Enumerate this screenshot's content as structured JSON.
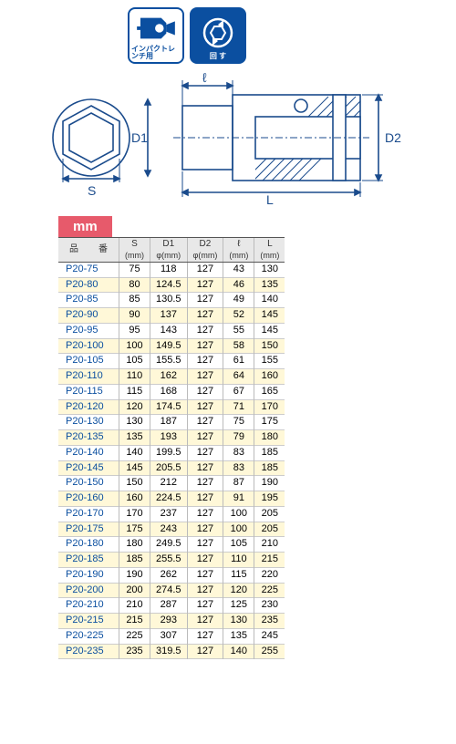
{
  "icons": {
    "impact_label": "インパクトレンチ用",
    "turn_label": "回 す"
  },
  "diagram": {
    "labels": {
      "S": "S",
      "D1": "D1",
      "D2": "D2",
      "L": "L",
      "l": "ℓ"
    },
    "colors": {
      "line": "#1a4b8c",
      "hatch": "#1a4b8c",
      "bg": "#ffffff"
    }
  },
  "unit_tab": "mm",
  "table": {
    "headers": [
      {
        "main": "品　番",
        "sub": ""
      },
      {
        "main": "S",
        "sub": "(mm)"
      },
      {
        "main": "D1",
        "sub": "φ(mm)"
      },
      {
        "main": "D2",
        "sub": "φ(mm)"
      },
      {
        "main": "ℓ",
        "sub": "(mm)"
      },
      {
        "main": "L",
        "sub": "(mm)"
      }
    ],
    "rows": [
      [
        "P20-75",
        "75",
        "118",
        "127",
        "43",
        "130"
      ],
      [
        "P20-80",
        "80",
        "124.5",
        "127",
        "46",
        "135"
      ],
      [
        "P20-85",
        "85",
        "130.5",
        "127",
        "49",
        "140"
      ],
      [
        "P20-90",
        "90",
        "137",
        "127",
        "52",
        "145"
      ],
      [
        "P20-95",
        "95",
        "143",
        "127",
        "55",
        "145"
      ],
      [
        "P20-100",
        "100",
        "149.5",
        "127",
        "58",
        "150"
      ],
      [
        "P20-105",
        "105",
        "155.5",
        "127",
        "61",
        "155"
      ],
      [
        "P20-110",
        "110",
        "162",
        "127",
        "64",
        "160"
      ],
      [
        "P20-115",
        "115",
        "168",
        "127",
        "67",
        "165"
      ],
      [
        "P20-120",
        "120",
        "174.5",
        "127",
        "71",
        "170"
      ],
      [
        "P20-130",
        "130",
        "187",
        "127",
        "75",
        "175"
      ],
      [
        "P20-135",
        "135",
        "193",
        "127",
        "79",
        "180"
      ],
      [
        "P20-140",
        "140",
        "199.5",
        "127",
        "83",
        "185"
      ],
      [
        "P20-145",
        "145",
        "205.5",
        "127",
        "83",
        "185"
      ],
      [
        "P20-150",
        "150",
        "212",
        "127",
        "87",
        "190"
      ],
      [
        "P20-160",
        "160",
        "224.5",
        "127",
        "91",
        "195"
      ],
      [
        "P20-170",
        "170",
        "237",
        "127",
        "100",
        "205"
      ],
      [
        "P20-175",
        "175",
        "243",
        "127",
        "100",
        "205"
      ],
      [
        "P20-180",
        "180",
        "249.5",
        "127",
        "105",
        "210"
      ],
      [
        "P20-185",
        "185",
        "255.5",
        "127",
        "110",
        "215"
      ],
      [
        "P20-190",
        "190",
        "262",
        "127",
        "115",
        "220"
      ],
      [
        "P20-200",
        "200",
        "274.5",
        "127",
        "120",
        "225"
      ],
      [
        "P20-210",
        "210",
        "287",
        "127",
        "125",
        "230"
      ],
      [
        "P20-215",
        "215",
        "293",
        "127",
        "130",
        "235"
      ],
      [
        "P20-225",
        "225",
        "307",
        "127",
        "135",
        "245"
      ],
      [
        "P20-235",
        "235",
        "319.5",
        "127",
        "140",
        "255"
      ]
    ]
  }
}
